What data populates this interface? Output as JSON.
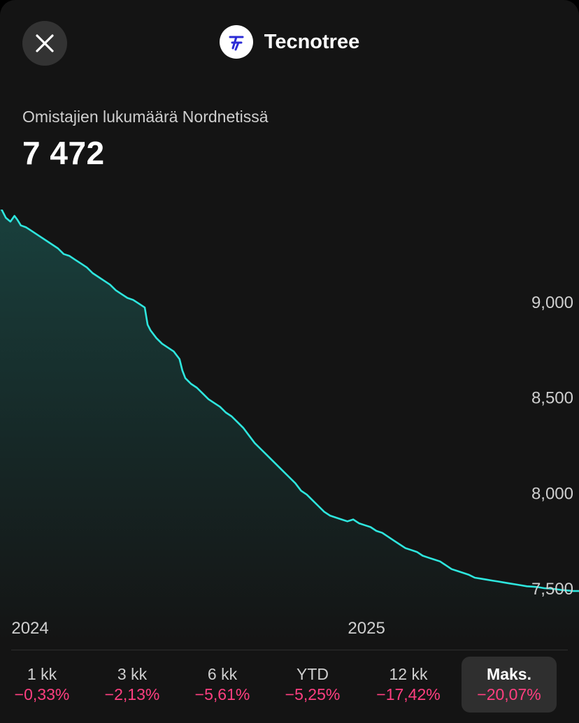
{
  "header": {
    "close_icon": "close-icon",
    "logo_icon": "tecnotree-logo-icon",
    "company_name": "Tecnotree"
  },
  "metric": {
    "label": "Omistajien lukumäärä Nordnetissä",
    "value": "7 472"
  },
  "colors": {
    "line": "#2ee6de",
    "negative": "#ff3f80",
    "logo": "#2b2bd6"
  },
  "chart_data": {
    "type": "area",
    "title": "",
    "xlabel": "",
    "ylabel": "",
    "ylim": [
      7470,
      9550
    ],
    "y_ticks": [
      9000,
      8500,
      8000,
      7500
    ],
    "y_tick_labels": [
      "9,000",
      "8,500",
      "8,000",
      "7,500"
    ],
    "x_tick_labels": [
      "2024",
      "2025"
    ],
    "x_tick_values": [
      0.052,
      0.633
    ],
    "grid": false,
    "legend": "none",
    "x": [
      0,
      0.01,
      0.018,
      0.025,
      0.03,
      0.036,
      0.045,
      0.05,
      0.06,
      0.07,
      0.08,
      0.09,
      0.1,
      0.11,
      0.12,
      0.13,
      0.14,
      0.15,
      0.16,
      0.17,
      0.18,
      0.19,
      0.2,
      0.21,
      0.22,
      0.23,
      0.24,
      0.25,
      0.255,
      0.26,
      0.27,
      0.28,
      0.29,
      0.3,
      0.31,
      0.315,
      0.32,
      0.33,
      0.34,
      0.35,
      0.36,
      0.37,
      0.38,
      0.39,
      0.4,
      0.41,
      0.42,
      0.43,
      0.44,
      0.45,
      0.46,
      0.47,
      0.48,
      0.49,
      0.5,
      0.51,
      0.52,
      0.53,
      0.54,
      0.55,
      0.56,
      0.57,
      0.58,
      0.59,
      0.6,
      0.61,
      0.62,
      0.63,
      0.64,
      0.65,
      0.66,
      0.67,
      0.68,
      0.69,
      0.7,
      0.71,
      0.72,
      0.73,
      0.74,
      0.75,
      0.76,
      0.77,
      0.78,
      0.79,
      0.8,
      0.81,
      0.82,
      0.83,
      0.84,
      0.85,
      0.86,
      0.87,
      0.88,
      0.89,
      0.9,
      0.91,
      0.92,
      0.93,
      0.94,
      0.95,
      0.96,
      0.97,
      0.98,
      0.99,
      1.0
    ],
    "series": [
      {
        "values": [
          9500,
          9440,
          9420,
          9450,
          9430,
          9400,
          9390,
          9380,
          9360,
          9340,
          9320,
          9300,
          9280,
          9250,
          9240,
          9220,
          9200,
          9180,
          9150,
          9130,
          9110,
          9090,
          9060,
          9040,
          9020,
          9010,
          8990,
          8970,
          8880,
          8850,
          8810,
          8780,
          8760,
          8740,
          8700,
          8640,
          8600,
          8570,
          8550,
          8520,
          8490,
          8470,
          8450,
          8420,
          8400,
          8370,
          8340,
          8300,
          8260,
          8230,
          8200,
          8170,
          8140,
          8110,
          8080,
          8050,
          8010,
          7990,
          7960,
          7930,
          7900,
          7880,
          7870,
          7860,
          7850,
          7860,
          7840,
          7830,
          7820,
          7800,
          7790,
          7770,
          7750,
          7730,
          7710,
          7700,
          7690,
          7670,
          7660,
          7650,
          7640,
          7620,
          7600,
          7590,
          7580,
          7570,
          7555,
          7550,
          7545,
          7540,
          7535,
          7530,
          7525,
          7520,
          7515,
          7510,
          7508,
          7505,
          7500,
          7498,
          7495,
          7490,
          7488,
          7485,
          7485
        ]
      }
    ]
  },
  "periods": [
    {
      "label": "1 kk",
      "change": "−0,33%"
    },
    {
      "label": "3 kk",
      "change": "−2,13%"
    },
    {
      "label": "6 kk",
      "change": "−5,61%"
    },
    {
      "label": "YTD",
      "change": "−5,25%"
    },
    {
      "label": "12 kk",
      "change": "−17,42%"
    },
    {
      "label": "Maks.",
      "change": "−20,07%",
      "active": true
    }
  ]
}
